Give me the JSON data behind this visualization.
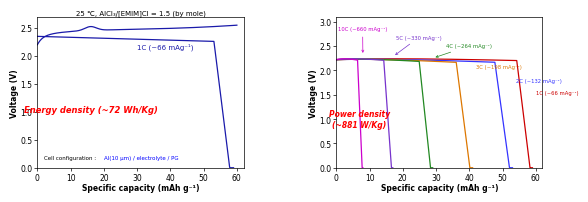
{
  "left_title": "25 ℃, AlCl₃/[EMIM]Cl = 1.5 (by mole)",
  "left_xlabel": "Specific capacity (mAh g⁻¹)",
  "left_ylabel": "Voltage (V)",
  "left_ylim": [
    0.0,
    2.7
  ],
  "left_xlim": [
    0,
    62
  ],
  "left_yticks": [
    0.0,
    0.5,
    1.0,
    1.5,
    2.0,
    2.5
  ],
  "left_xticks": [
    0,
    10,
    20,
    30,
    40,
    50,
    60
  ],
  "left_label": "1C (~66 mAg⁻¹)",
  "left_energy_text": "Energy density (~72 Wh/Kg)",
  "left_cell_text": "Cell configuration : ",
  "left_cell_blue": "Al(10 μm) / electrolyte / PG",
  "right_xlabel": "Specific capacity (mAh g⁻¹)",
  "right_ylabel": "Voltage (V)",
  "right_ylim": [
    0.0,
    3.1
  ],
  "right_xlim": [
    0,
    62
  ],
  "right_yticks": [
    0.0,
    0.5,
    1.0,
    1.5,
    2.0,
    2.5,
    3.0
  ],
  "right_xticks": [
    0,
    10,
    20,
    30,
    40,
    50,
    60
  ],
  "right_power_text": "Power density\n(~881 W/Kg)",
  "line_color_left": "#1a1aaa",
  "curves": [
    {
      "label": "1C (~66 mAg⁻¹)",
      "color": "#cc0000",
      "cap": 59.0
    },
    {
      "label": "2C (~132 mAg⁻¹)",
      "color": "#3333ff",
      "cap": 53.0
    },
    {
      "label": "3C (~198 mAg⁻¹)",
      "color": "#dd7700",
      "cap": 41.0
    },
    {
      "label": "4C (~264 mAg⁻¹)",
      "color": "#228822",
      "cap": 29.0
    },
    {
      "label": "5C (~330 mAg⁻¹)",
      "color": "#7733cc",
      "cap": 17.0
    },
    {
      "label": "10C (~660 mAg⁻¹)",
      "color": "#cc00cc",
      "cap": 8.0
    }
  ]
}
